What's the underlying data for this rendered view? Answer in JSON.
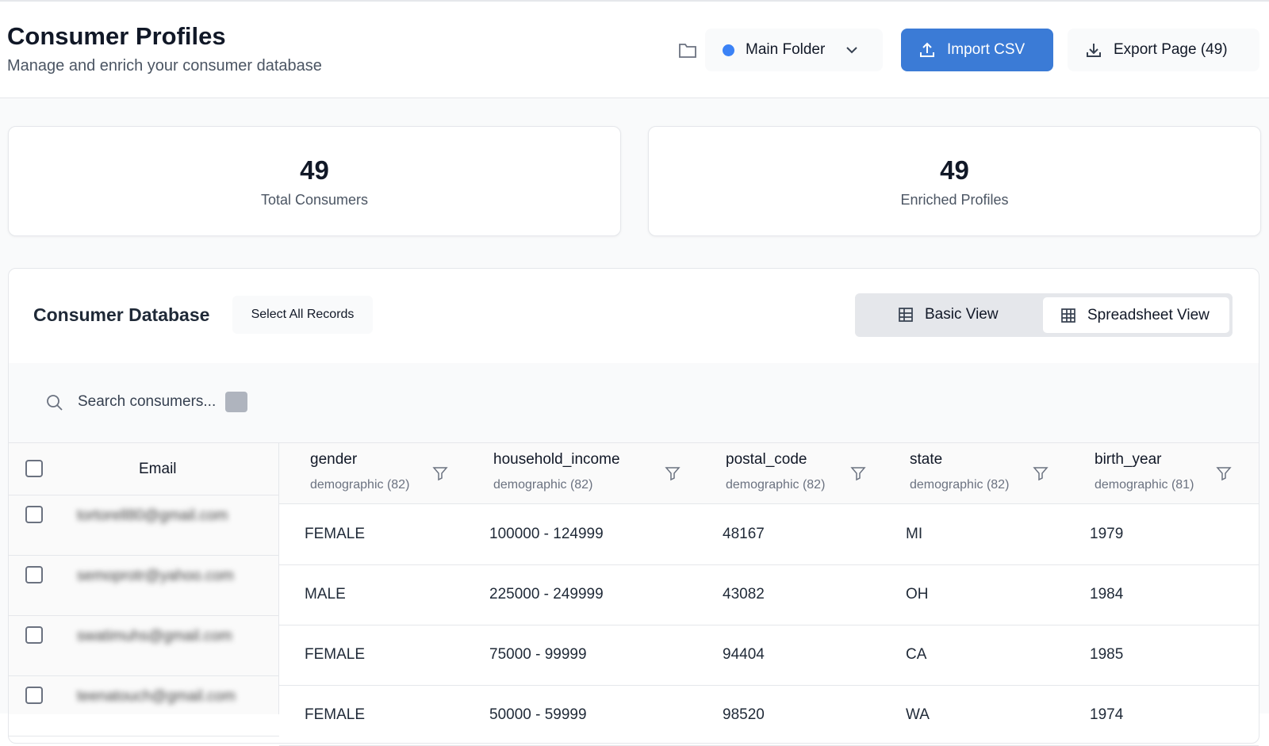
{
  "header": {
    "title": "Consumer Profiles",
    "subtitle": "Manage and enrich your consumer database",
    "folder": "Main Folder",
    "import_button": "Import CSV",
    "export_button": "Export Page (49)"
  },
  "stats": [
    {
      "value": 49,
      "label": "Total Consumers"
    },
    {
      "value": 49,
      "label": "Enriched Profiles"
    }
  ],
  "database": {
    "title": "Consumer Database",
    "select_all": "Select All Records",
    "views": [
      "Basic View",
      "Spreadsheet View"
    ],
    "search_placeholder": "Search consumers..."
  },
  "table": {
    "email_header": "Email",
    "columns": [
      {
        "name": "gender",
        "source": "demographic (82)"
      },
      {
        "name": "household_income",
        "source": "demographic (82)"
      },
      {
        "name": "postal_code",
        "source": "demographic (82)"
      },
      {
        "name": "state",
        "source": "demographic (82)"
      },
      {
        "name": "birth_year",
        "source": "demographic (81)"
      }
    ],
    "rows": [
      {
        "email": "tortorell80@gmail.com",
        "values": [
          "FEMALE",
          "100000 - 124999",
          "48167",
          "MI",
          "1979"
        ]
      },
      {
        "email": "semoprotr@yahoo.com",
        "values": [
          "MALE",
          "225000 - 249999",
          "43082",
          "OH",
          "1984"
        ]
      },
      {
        "email": "swatimuhs@gmail.com",
        "values": [
          "FEMALE",
          "75000 - 99999",
          "94404",
          "CA",
          "1985"
        ]
      },
      {
        "email": "teenatouch@gmail.com",
        "values": [
          "FEMALE",
          "50000 - 59999",
          "98520",
          "WA",
          "1974"
        ]
      }
    ]
  }
}
